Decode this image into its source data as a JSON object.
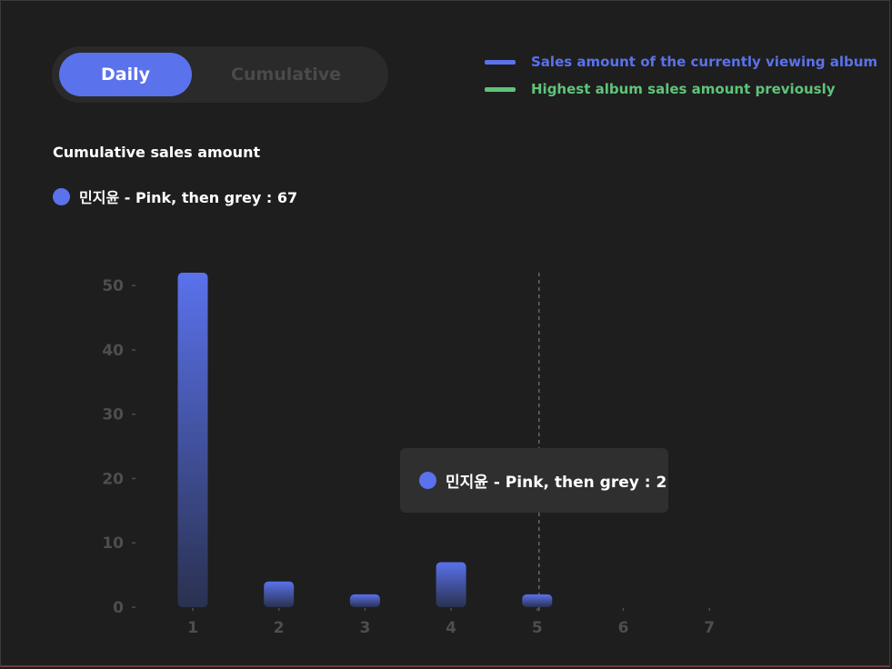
{
  "toggle": {
    "daily_label": "Daily",
    "cumulative_label": "Cumulative",
    "active": "Daily"
  },
  "legend": [
    {
      "label": "Sales amount of the currently viewing album",
      "color": "#5a72ec"
    },
    {
      "label": "Highest album sales amount previously",
      "color": "#5fc47a"
    }
  ],
  "section_title": "Cumulative sales amount",
  "summary_text": "민지윤 - Pink, then grey : 67",
  "tooltip_text": "민지윤 - Pink, then grey : 2",
  "chart_data": {
    "type": "bar",
    "categories": [
      "1",
      "2",
      "3",
      "4",
      "5",
      "6",
      "7"
    ],
    "values": [
      52,
      4,
      2,
      7,
      2,
      null,
      null
    ],
    "ylim": [
      0,
      52
    ],
    "yticks": [
      0,
      10,
      20,
      30,
      40,
      50
    ],
    "grid": false,
    "highlight_category": "5",
    "bar_gradient": [
      "#5a72ec",
      "#2a3150"
    ]
  }
}
